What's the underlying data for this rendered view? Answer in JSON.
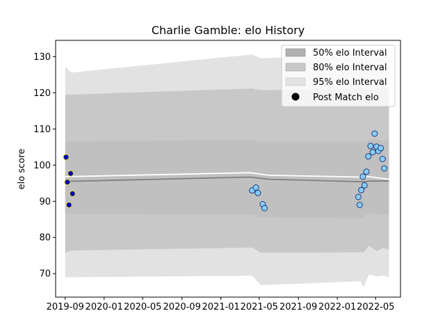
{
  "chart_data": {
    "type": "line",
    "title": "Charlie Gamble: elo History",
    "xlabel": "",
    "ylabel": "elo score",
    "x_ticks": [
      "2019-09",
      "2020-01",
      "2020-05",
      "2020-09",
      "2021-01",
      "2021-05",
      "2021-09",
      "2022-01",
      "2022-05"
    ],
    "y_ticks": [
      70,
      80,
      90,
      100,
      110,
      120,
      130
    ],
    "xlim": [
      "2019-08-02",
      "2022-07-18"
    ],
    "ylim": [
      63.5,
      134.5
    ],
    "grid": false,
    "legend_position": "top-right",
    "legend": [
      {
        "label": "50% elo Interval",
        "color": "#b0b0b0"
      },
      {
        "label": "80% elo Interval",
        "color": "#c8c8c8"
      },
      {
        "label": "95% elo Interval",
        "color": "#e2e2e2"
      },
      {
        "label": "Post Match elo",
        "color": "#000000"
      }
    ],
    "band_x": [
      "2019-09-01",
      "2019-09-20",
      "2021-04-10",
      "2021-05-05",
      "2022-03-15",
      "2022-03-25",
      "2022-04-10",
      "2022-05-05",
      "2022-05-25",
      "2022-06-12"
    ],
    "band_95": {
      "upper": [
        127.2,
        125.6,
        130.6,
        129.6,
        130.2,
        131.2,
        130.2,
        131.4,
        130.6,
        130.2
      ],
      "lower": [
        69.0,
        69.0,
        69.4,
        66.8,
        67.9,
        66.3,
        69.8,
        69.2,
        69.4,
        69.0
      ]
    },
    "band_80": {
      "upper": [
        119.5,
        119.5,
        121.2,
        120.7,
        121.2,
        121.2,
        120.9,
        121.3,
        121.2,
        120.9
      ],
      "lower": [
        75.8,
        76.4,
        77.2,
        75.8,
        75.9,
        75.9,
        77.7,
        76.3,
        77.1,
        76.6
      ]
    },
    "band_50": {
      "upper": [
        106.2,
        106.6,
        106.9,
        106.5,
        106.5,
        106.5,
        107.0,
        107.0,
        106.8,
        106.8
      ],
      "lower": [
        86.7,
        86.5,
        86.4,
        85.6,
        85.3,
        85.8,
        86.6,
        86.4,
        86.4,
        86.4
      ]
    },
    "series": [
      {
        "label": "mean",
        "color": "#ffffff",
        "x": [
          "2019-09-01",
          "2021-04-01",
          "2021-06-01",
          "2022-03-20",
          "2022-04-10",
          "2022-06-12"
        ],
        "values": [
          96.8,
          97.9,
          97.2,
          96.7,
          96.8,
          96.1
        ]
      },
      {
        "label": "median",
        "color": "#808080",
        "x": [
          "2019-09-01",
          "2021-04-01",
          "2021-06-01",
          "2022-03-20",
          "2022-04-10",
          "2022-06-12"
        ],
        "values": [
          95.5,
          96.7,
          96.1,
          95.4,
          95.6,
          95.6
        ]
      }
    ],
    "points_2019": {
      "fill": "#0000aa",
      "edge": "#e6d83a",
      "x": [
        "2019-09-04",
        "2019-09-08",
        "2019-09-13",
        "2019-09-18",
        "2019-09-24"
      ],
      "values": [
        102.2,
        95.3,
        89.0,
        97.7,
        92.1
      ]
    },
    "points_later": {
      "fill": "#87cefa",
      "edge": "#1f3a7a",
      "x": [
        "2021-04-09",
        "2021-04-21",
        "2021-04-27",
        "2021-05-12",
        "2021-05-18",
        "2022-03-08",
        "2022-03-12",
        "2022-03-17",
        "2022-03-22",
        "2022-03-27",
        "2022-04-02",
        "2022-04-08",
        "2022-04-15",
        "2022-04-22",
        "2022-04-28",
        "2022-05-04",
        "2022-05-10",
        "2022-05-17",
        "2022-05-23",
        "2022-05-28"
      ],
      "values": [
        93.0,
        93.8,
        92.3,
        89.2,
        88.1,
        91.2,
        89.0,
        93.1,
        96.8,
        94.4,
        98.2,
        102.4,
        105.3,
        103.6,
        108.7,
        105.1,
        103.9,
        104.7,
        101.7,
        99.1
      ]
    }
  }
}
